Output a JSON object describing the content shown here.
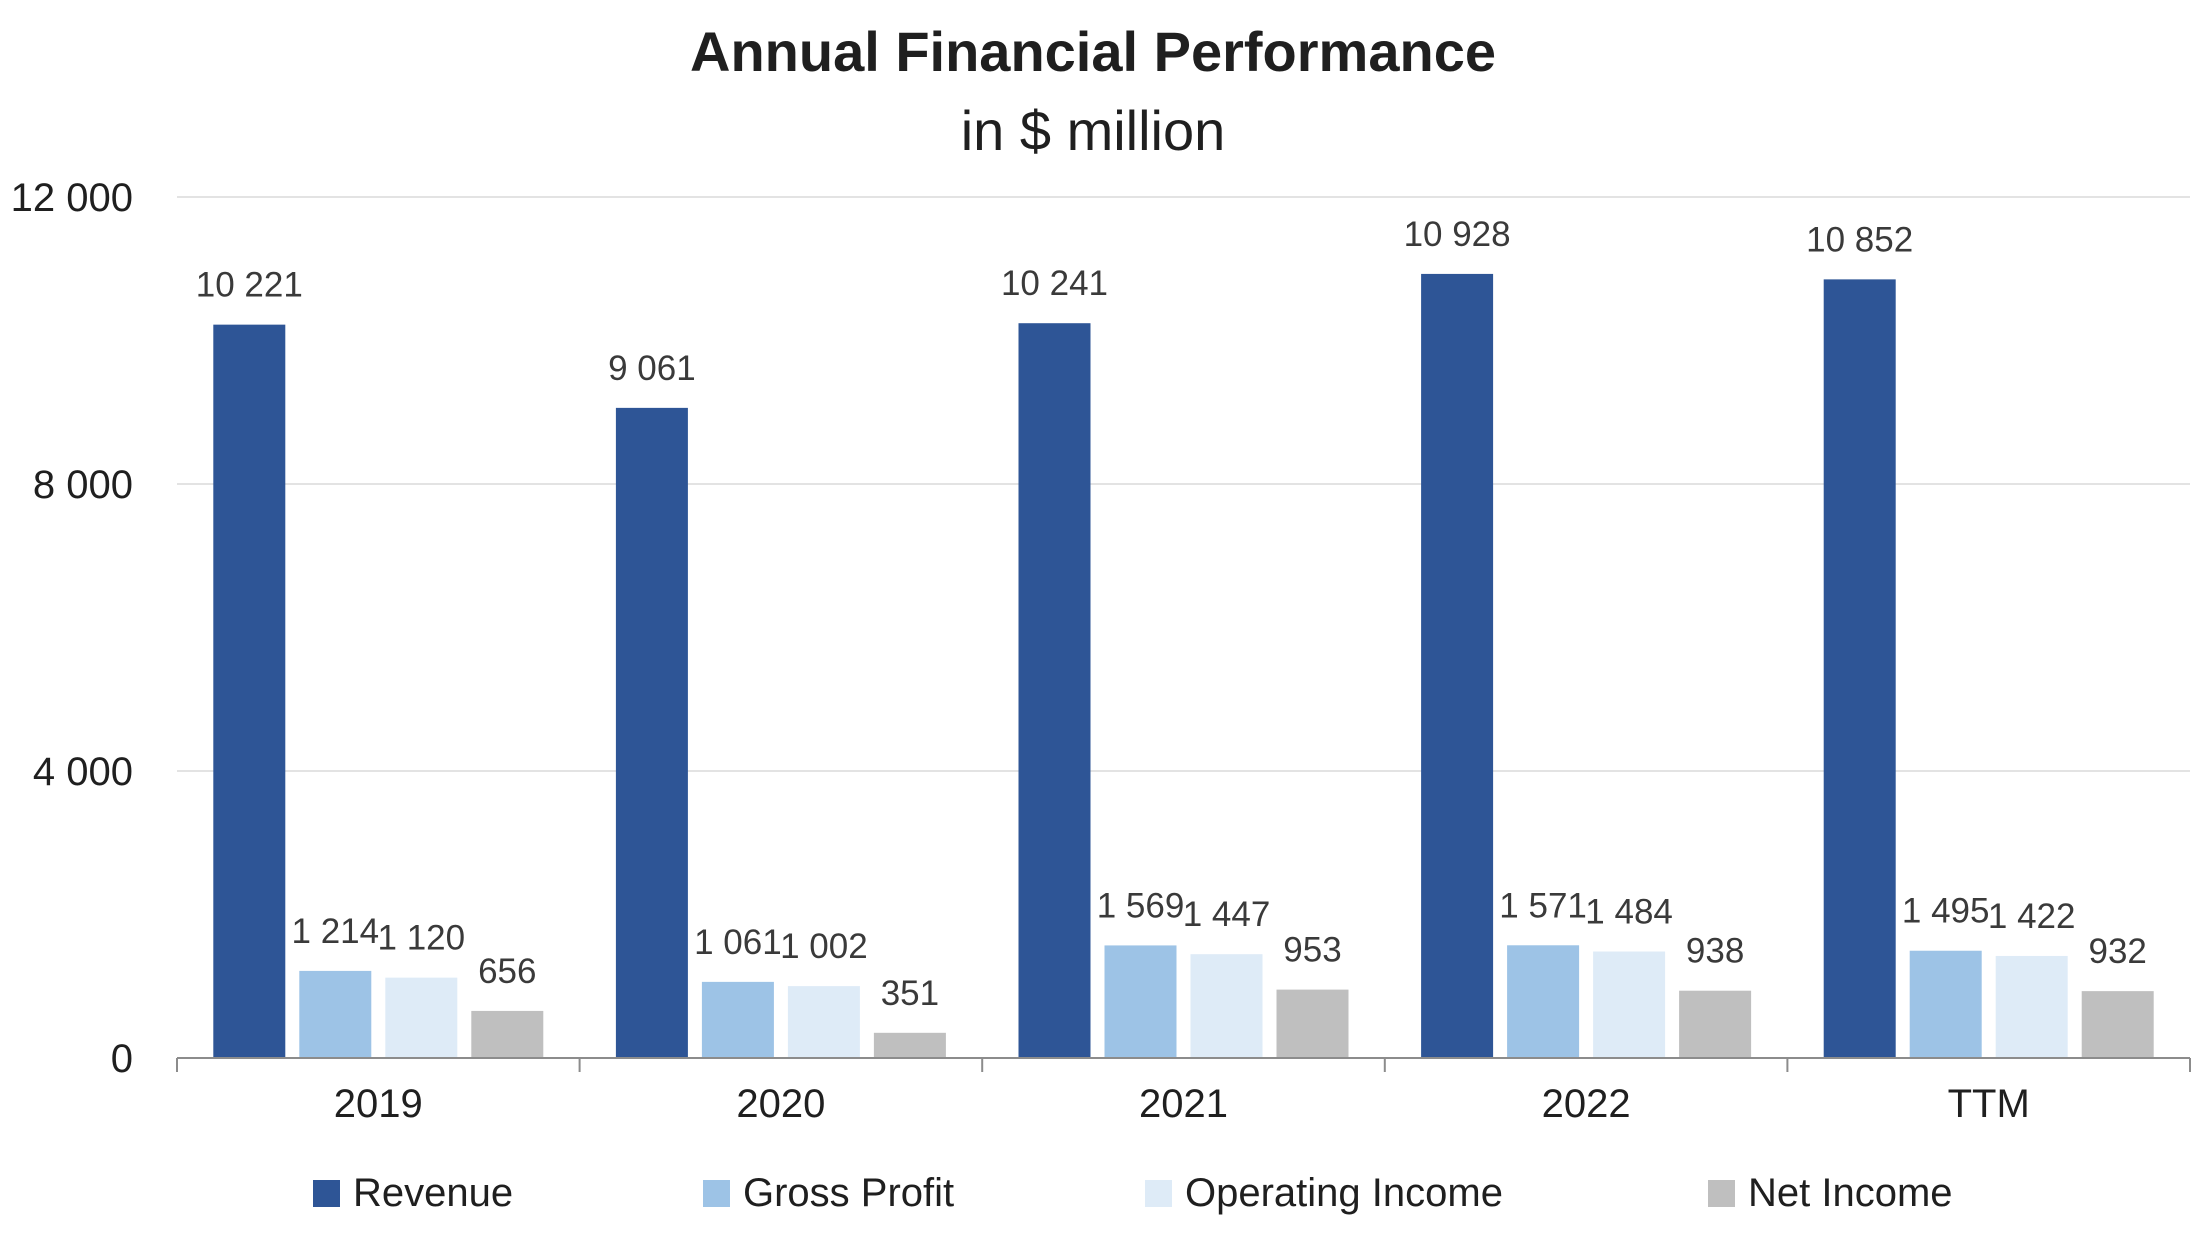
{
  "chart_data": {
    "type": "bar",
    "title": "Annual Financial Performance",
    "subtitle": "in $ million",
    "xlabel": "",
    "ylabel": "",
    "categories": [
      "2019",
      "2020",
      "2021",
      "2022",
      "TTM"
    ],
    "ylim": [
      0,
      12000
    ],
    "yticks": [
      0,
      4000,
      8000,
      12000
    ],
    "ytick_labels": [
      "0",
      "4 000",
      "8 000",
      "12 000"
    ],
    "grid": true,
    "legend_position": "bottom",
    "series": [
      {
        "name": "Revenue",
        "color": "#2e5596",
        "values": [
          10221,
          9061,
          10241,
          10928,
          10852
        ],
        "labels": [
          "10 221",
          "9 061",
          "10 241",
          "10 928",
          "10 852"
        ]
      },
      {
        "name": "Gross Profit",
        "color": "#9dc3e6",
        "values": [
          1214,
          1061,
          1569,
          1571,
          1495
        ],
        "labels": [
          "1 214",
          "1 061",
          "1 569",
          "1 571",
          "1 495"
        ]
      },
      {
        "name": "Operating Income",
        "color": "#deebf7",
        "values": [
          1120,
          1002,
          1447,
          1484,
          1422
        ],
        "labels": [
          "1 120",
          "1 002",
          "1 447",
          "1 484",
          "1 422"
        ]
      },
      {
        "name": "Net Income",
        "color": "#bfbfbf",
        "values": [
          656,
          351,
          953,
          938,
          932
        ],
        "labels": [
          "656",
          "351",
          "953",
          "938",
          "932"
        ]
      }
    ]
  }
}
